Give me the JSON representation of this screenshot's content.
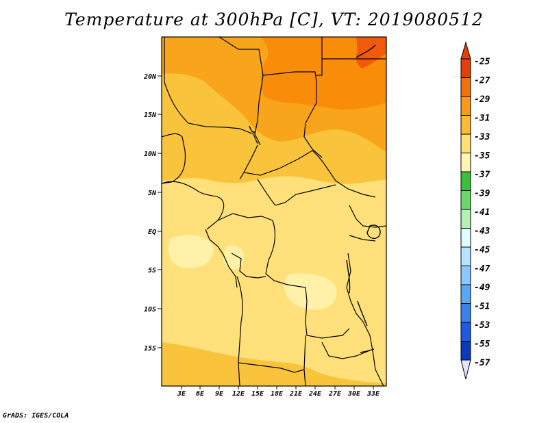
{
  "title": "Temperature at 300hPa [C], VT: 2019080512",
  "credit": "GrADS: IGES/COLA",
  "map": {
    "region": "Central Africa",
    "lat_labels": [
      "20N",
      "15N",
      "10N",
      "5N",
      "EQ",
      "5S",
      "10S",
      "15S"
    ],
    "lon_labels": [
      "3E",
      "6E",
      "9E",
      "12E",
      "15E",
      "18E",
      "21E",
      "24E",
      "27E",
      "30E",
      "33E"
    ],
    "field_colors": {
      "c1": "#FFF1A8",
      "c2": "#FFE07A",
      "c3": "#FAC33C",
      "c4": "#F9A51C",
      "c5": "#F98D0A",
      "c6": "#F05A08"
    }
  },
  "colorbar": {
    "labels": [
      "-25",
      "-27",
      "-29",
      "-31",
      "-33",
      "-35",
      "-37",
      "-39",
      "-41",
      "-43",
      "-45",
      "-47",
      "-49",
      "-51",
      "-53",
      "-55",
      "-57"
    ],
    "colors": [
      "#E0400C",
      "#F27012",
      "#F99A19",
      "#FABB37",
      "#FDE07A",
      "#FFF5B8",
      "#3CBF3C",
      "#6CD66C",
      "#B6F0B6",
      "#E1FCFF",
      "#B6E3FF",
      "#8CC8FF",
      "#5AA8F0",
      "#3C82E6",
      "#1E5ADC",
      "#0C3AB4",
      "#0C127A"
    ],
    "top_arrow_color": "#E0400C",
    "bottom_arrow_color": "#E1E3FF"
  }
}
